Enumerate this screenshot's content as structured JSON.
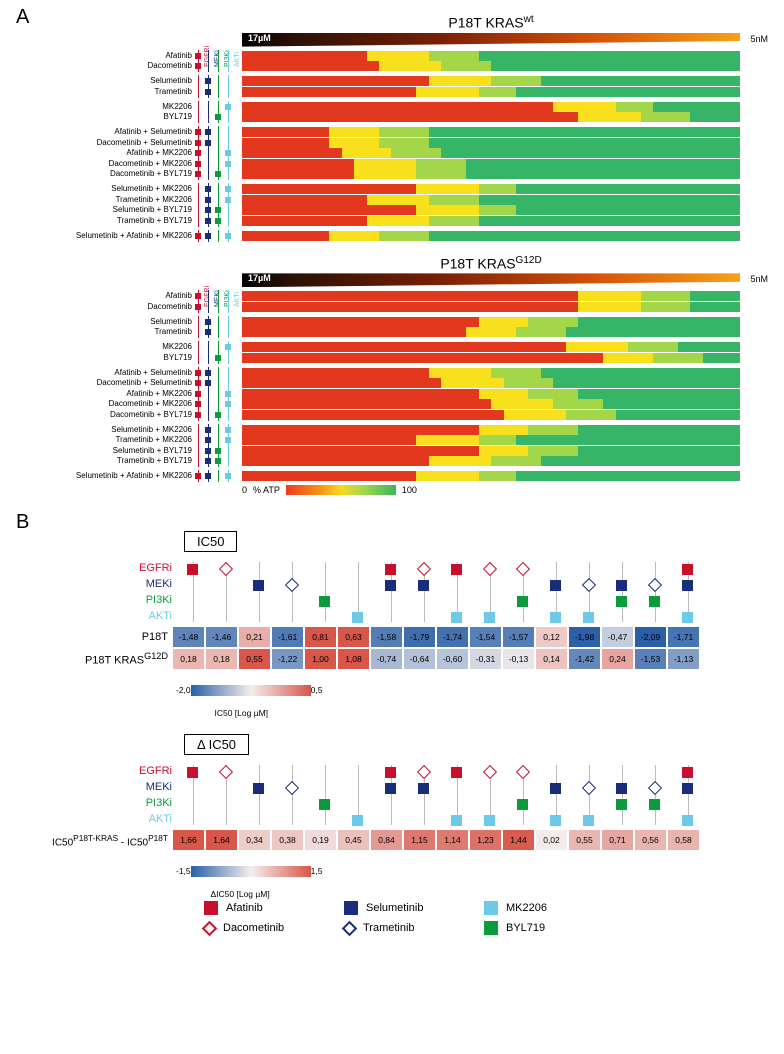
{
  "colors": {
    "EGFRi": "#c8102e",
    "MEKi": "#1a2d7a",
    "PI3Ki": "#0b9b3e",
    "AKTi": "#6dc9e8",
    "heat_low": "#e2391e",
    "heat_mid1": "#f78d18",
    "heat_mid2": "#f9e01c",
    "heat_mid3": "#a4d64a",
    "heat_high": "#37b566",
    "ic50_neg": "#2a5fa8",
    "ic50_zero": "#f4eeed",
    "ic50_pos": "#d8564a"
  },
  "panelA": {
    "title1": "P18T KRAS",
    "title1_sup": "wt",
    "title2": "P18T KRAS",
    "title2_sup": "G12D",
    "target_cols": [
      "EGFRi",
      "MEKi",
      "PI3Ki",
      "AKTi"
    ],
    "conc_left": "17µM",
    "conc_right": "5nM",
    "atp_low": "0",
    "atp_mid": "% ATP",
    "atp_high": "100",
    "row_groups": [
      [
        {
          "label": "Afatinib",
          "t": [
            1,
            0,
            0,
            0
          ],
          "shift": 8
        },
        {
          "label": "Dacometinib",
          "t": [
            1,
            0,
            0,
            0
          ],
          "shift": 9
        }
      ],
      [
        {
          "label": "Selumetinib",
          "t": [
            0,
            1,
            0,
            0
          ],
          "shift": 12
        },
        {
          "label": "Trametinib",
          "t": [
            0,
            1,
            0,
            0
          ],
          "shift": 11
        }
      ],
      [
        {
          "label": "MK2206",
          "t": [
            0,
            0,
            0,
            1
          ],
          "shift": 20
        },
        {
          "label": "BYL719",
          "t": [
            0,
            0,
            1,
            0
          ],
          "shift": 22
        }
      ],
      [
        {
          "label": "Afatinib + Selumetinib",
          "t": [
            1,
            1,
            0,
            0
          ],
          "shift": 5
        },
        {
          "label": "Dacometinib + Selumetinib",
          "t": [
            1,
            1,
            0,
            0
          ],
          "shift": 5
        },
        {
          "label": "Afatinib + MK2206",
          "t": [
            1,
            0,
            0,
            1
          ],
          "shift": 6
        },
        {
          "label": "Dacometinib + MK2206",
          "t": [
            1,
            0,
            0,
            1
          ],
          "shift": 7
        },
        {
          "label": "Dacometinib + BYL719",
          "t": [
            1,
            0,
            1,
            0
          ],
          "shift": 7
        }
      ],
      [
        {
          "label": "Selumetinib + MK2206",
          "t": [
            0,
            1,
            0,
            1
          ],
          "shift": 11
        },
        {
          "label": "Trametinib + MK2206",
          "t": [
            0,
            1,
            0,
            1
          ],
          "shift": 8
        },
        {
          "label": "Selumetinib + BYL719",
          "t": [
            0,
            1,
            1,
            0
          ],
          "shift": 11
        },
        {
          "label": "Trametinib + BYL719",
          "t": [
            0,
            1,
            1,
            0
          ],
          "shift": 8
        }
      ],
      [
        {
          "label": "Selumetinib + Afatinib + MK2206",
          "t": [
            1,
            1,
            0,
            1
          ],
          "shift": 5
        }
      ]
    ],
    "row_groups_g12d": [
      [
        {
          "label": "Afatinib",
          "t": [
            1,
            0,
            0,
            0
          ],
          "shift": 22
        },
        {
          "label": "Dacometinib",
          "t": [
            1,
            0,
            0,
            0
          ],
          "shift": 22
        }
      ],
      [
        {
          "label": "Selumetinib",
          "t": [
            0,
            1,
            0,
            0
          ],
          "shift": 15
        },
        {
          "label": "Trametinib",
          "t": [
            0,
            1,
            0,
            0
          ],
          "shift": 14
        }
      ],
      [
        {
          "label": "MK2206",
          "t": [
            0,
            0,
            0,
            1
          ],
          "shift": 21
        },
        {
          "label": "BYL719",
          "t": [
            0,
            0,
            1,
            0
          ],
          "shift": 23
        }
      ],
      [
        {
          "label": "Afatinib + Selumetinib",
          "t": [
            1,
            1,
            0,
            0
          ],
          "shift": 12
        },
        {
          "label": "Dacometinib + Selumetinib",
          "t": [
            1,
            1,
            0,
            0
          ],
          "shift": 13
        },
        {
          "label": "Afatinib + MK2206",
          "t": [
            1,
            0,
            0,
            1
          ],
          "shift": 15
        },
        {
          "label": "Dacometinib + MK2206",
          "t": [
            1,
            0,
            0,
            1
          ],
          "shift": 16
        },
        {
          "label": "Dacometinib + BYL719",
          "t": [
            1,
            0,
            1,
            0
          ],
          "shift": 17
        }
      ],
      [
        {
          "label": "Selumetinib + MK2206",
          "t": [
            0,
            1,
            0,
            1
          ],
          "shift": 15
        },
        {
          "label": "Trametinib + MK2206",
          "t": [
            0,
            1,
            0,
            1
          ],
          "shift": 11
        },
        {
          "label": "Selumetinib + BYL719",
          "t": [
            0,
            1,
            1,
            0
          ],
          "shift": 15
        },
        {
          "label": "Trametinib + BYL719",
          "t": [
            0,
            1,
            1,
            0
          ],
          "shift": 12
        }
      ],
      [
        {
          "label": "Selumetinib + Afatinib + MK2206",
          "t": [
            1,
            1,
            0,
            1
          ],
          "shift": 11
        }
      ]
    ]
  },
  "panelB": {
    "section1_title": "IC50",
    "section2_title": "Δ IC50",
    "target_labels": [
      "EGFRi",
      "MEKi",
      "PI3Ki",
      "AKTi"
    ],
    "columns": [
      {
        "markers": [
          {
            "r": 0,
            "c": "EGFRi",
            "shape": "square"
          }
        ]
      },
      {
        "markers": [
          {
            "r": 0,
            "c": "EGFRi",
            "shape": "diamond"
          }
        ]
      },
      {
        "markers": [
          {
            "r": 1,
            "c": "MEKi",
            "shape": "square"
          }
        ]
      },
      {
        "markers": [
          {
            "r": 1,
            "c": "MEKi",
            "shape": "diamond"
          }
        ]
      },
      {
        "markers": [
          {
            "r": 2,
            "c": "PI3Ki",
            "shape": "square"
          }
        ]
      },
      {
        "markers": [
          {
            "r": 3,
            "c": "AKTi",
            "shape": "square"
          }
        ]
      },
      {
        "markers": [
          {
            "r": 0,
            "c": "EGFRi",
            "shape": "square"
          },
          {
            "r": 1,
            "c": "MEKi",
            "shape": "square"
          }
        ]
      },
      {
        "markers": [
          {
            "r": 0,
            "c": "EGFRi",
            "shape": "diamond"
          },
          {
            "r": 1,
            "c": "MEKi",
            "shape": "square"
          }
        ]
      },
      {
        "markers": [
          {
            "r": 0,
            "c": "EGFRi",
            "shape": "square"
          },
          {
            "r": 3,
            "c": "AKTi",
            "shape": "square"
          }
        ]
      },
      {
        "markers": [
          {
            "r": 0,
            "c": "EGFRi",
            "shape": "diamond"
          },
          {
            "r": 3,
            "c": "AKTi",
            "shape": "square"
          }
        ]
      },
      {
        "markers": [
          {
            "r": 0,
            "c": "EGFRi",
            "shape": "diamond"
          },
          {
            "r": 2,
            "c": "PI3Ki",
            "shape": "square"
          }
        ]
      },
      {
        "markers": [
          {
            "r": 1,
            "c": "MEKi",
            "shape": "square"
          },
          {
            "r": 3,
            "c": "AKTi",
            "shape": "square"
          }
        ]
      },
      {
        "markers": [
          {
            "r": 1,
            "c": "MEKi",
            "shape": "diamond"
          },
          {
            "r": 3,
            "c": "AKTi",
            "shape": "square"
          }
        ]
      },
      {
        "markers": [
          {
            "r": 1,
            "c": "MEKi",
            "shape": "square"
          },
          {
            "r": 2,
            "c": "PI3Ki",
            "shape": "square"
          }
        ]
      },
      {
        "markers": [
          {
            "r": 1,
            "c": "MEKi",
            "shape": "diamond"
          },
          {
            "r": 2,
            "c": "PI3Ki",
            "shape": "square"
          }
        ]
      },
      {
        "markers": [
          {
            "r": 0,
            "c": "EGFRi",
            "shape": "square"
          },
          {
            "r": 1,
            "c": "MEKi",
            "shape": "square"
          },
          {
            "r": 3,
            "c": "AKTi",
            "shape": "square"
          }
        ]
      }
    ],
    "ic50_rows": [
      {
        "label": "P18T",
        "vals": [
          "-1,48",
          "-1,46",
          "0,21",
          "-1,61",
          "0,81",
          "0,63",
          "-1,58",
          "-1,79",
          "-1,74",
          "-1,54",
          "-1,57",
          "0,12",
          "-1,98",
          "-0,47",
          "-2,09",
          "-1,71"
        ],
        "nums": [
          -1.48,
          -1.46,
          0.21,
          -1.61,
          0.81,
          0.63,
          -1.58,
          -1.79,
          -1.74,
          -1.54,
          -1.57,
          0.12,
          -1.98,
          -0.47,
          -2.09,
          -1.71
        ]
      },
      {
        "label": "P18T KRAS<sup>G12D</sup>",
        "vals": [
          "0,18",
          "0,18",
          "0,55",
          "-1,22",
          "1,00",
          "1,08",
          "-0,74",
          "-0,64",
          "-0,60",
          "-0,31",
          "-0,13",
          "0,14",
          "-1,42",
          "0,24",
          "-1,53",
          "-1,13"
        ],
        "nums": [
          0.18,
          0.18,
          0.55,
          -1.22,
          1.0,
          1.08,
          -0.74,
          -0.64,
          -0.6,
          -0.31,
          -0.13,
          0.14,
          -1.42,
          0.24,
          -1.53,
          -1.13
        ]
      }
    ],
    "ic50_scale_low": "-2,0",
    "ic50_scale_high": "0,5",
    "ic50_scale_label": "IC50 [Log µM]",
    "delta_row_label": "IC50<sup>P18T-KRAS</sup> - IC50<sup>P18T</sup>",
    "delta_vals": [
      "1,66",
      "1,64",
      "0,34",
      "0,38",
      "0,19",
      "0,45",
      "0,84",
      "1,15",
      "1,14",
      "1,23",
      "1,44",
      "0,02",
      "0,55",
      "0,71",
      "0,56",
      "0,58"
    ],
    "delta_nums": [
      1.66,
      1.64,
      0.34,
      0.38,
      0.19,
      0.45,
      0.84,
      1.15,
      1.14,
      1.23,
      1.44,
      0.02,
      0.55,
      0.71,
      0.56,
      0.58
    ],
    "delta_scale_low": "-1,5",
    "delta_scale_high": "1,5",
    "delta_scale_label": "ΔIC50 [Log µM]",
    "legend": [
      {
        "shape": "square",
        "color": "EGFRi",
        "label": "Afatinib"
      },
      {
        "shape": "square",
        "color": "MEKi",
        "label": "Selumetinib"
      },
      {
        "shape": "square",
        "color": "AKTi",
        "label": "MK2206"
      },
      {
        "shape": "diamond",
        "color": "EGFRi",
        "label": "Dacometinib"
      },
      {
        "shape": "diamond",
        "color": "MEKi",
        "label": "Trametinib"
      },
      {
        "shape": "square",
        "color": "PI3Ki",
        "label": "BYL719"
      }
    ]
  },
  "panel_labels": {
    "A": "A",
    "B": "B"
  }
}
